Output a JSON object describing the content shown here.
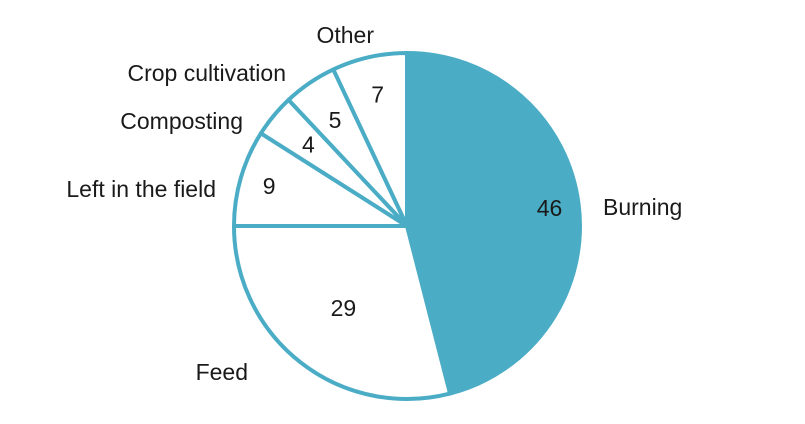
{
  "chart_data": {
    "type": "pie",
    "title": "",
    "categories": [
      "Burning",
      "Feed",
      "Left in the field",
      "Composting",
      "Crop cultivation",
      "Other"
    ],
    "values": [
      46,
      29,
      9,
      4,
      5,
      7
    ],
    "data_labels": [
      "46",
      "29",
      "9",
      "4",
      "5",
      "7"
    ],
    "start": "12 o'clock",
    "direction": "clockwise",
    "legend": "none",
    "colors": {
      "highlight_fill": "#4bacc6",
      "slice_fill": "#ffffff",
      "border": "#4bacc6",
      "text": "#1a1a1a"
    },
    "slice_fills": [
      "#4bacc6",
      "#ffffff",
      "#ffffff",
      "#ffffff",
      "#ffffff",
      "#ffffff"
    ]
  }
}
